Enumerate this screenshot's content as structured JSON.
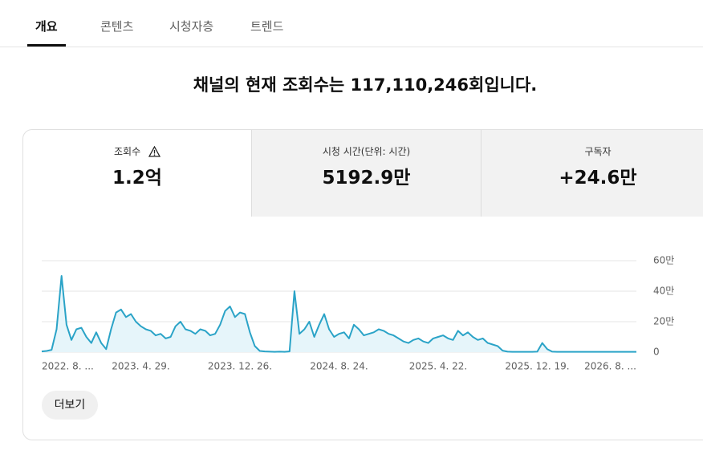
{
  "tabs": [
    "개요",
    "콘텐츠",
    "시청자층",
    "트렌드"
  ],
  "headline": "채널의 현재 조회수는 117,110,246회입니다.",
  "metrics": [
    {
      "label": "조회수",
      "value": "1.2억"
    },
    {
      "label": "시청 시간(단위: 시간)",
      "value": "5192.9만"
    },
    {
      "label": "구독자",
      "value": "+24.6만"
    }
  ],
  "more_button": "더보기",
  "chart_data": {
    "type": "line",
    "color": "#2aa3c7",
    "fill": "#e6f5fa",
    "categories": [
      "2022. 8. ...",
      null,
      null,
      null,
      null,
      null,
      null,
      null,
      null,
      null,
      null,
      null,
      null,
      null,
      null,
      null,
      null,
      null,
      null,
      null,
      "2023. 4. 29.",
      null,
      null,
      null,
      null,
      null,
      null,
      null,
      null,
      null,
      null,
      null,
      null,
      null,
      null,
      null,
      null,
      null,
      null,
      null,
      "2023. 12. 26.",
      null,
      null,
      null,
      null,
      null,
      null,
      null,
      null,
      null,
      null,
      null,
      null,
      null,
      null,
      null,
      null,
      null,
      null,
      null,
      "2024. 8. 24.",
      null,
      null,
      null,
      null,
      null,
      null,
      null,
      null,
      null,
      null,
      null,
      null,
      null,
      null,
      null,
      null,
      null,
      null,
      null,
      "2025. 4. 22.",
      null,
      null,
      null,
      null,
      null,
      null,
      null,
      null,
      null,
      null,
      null,
      null,
      null,
      null,
      null,
      null,
      null,
      null,
      null,
      "2025. 12. 19.",
      null,
      null,
      null,
      null,
      null,
      null,
      null,
      null,
      null,
      null,
      null,
      null,
      null,
      null,
      null,
      null,
      null,
      null,
      null,
      "2026. 8. ..."
    ],
    "values": [
      5000,
      8000,
      15000,
      150000,
      500000,
      180000,
      80000,
      150000,
      160000,
      100000,
      60000,
      130000,
      60000,
      20000,
      150000,
      260000,
      280000,
      230000,
      250000,
      200000,
      170000,
      150000,
      140000,
      110000,
      120000,
      90000,
      100000,
      170000,
      200000,
      150000,
      140000,
      120000,
      150000,
      140000,
      110000,
      120000,
      180000,
      270000,
      300000,
      230000,
      260000,
      250000,
      130000,
      40000,
      8000,
      5000,
      3000,
      2000,
      3000,
      2000,
      5000,
      400000,
      120000,
      150000,
      200000,
      100000,
      180000,
      250000,
      150000,
      100000,
      120000,
      130000,
      90000,
      180000,
      150000,
      110000,
      120000,
      130000,
      150000,
      140000,
      120000,
      110000,
      90000,
      70000,
      60000,
      80000,
      90000,
      70000,
      60000,
      90000,
      100000,
      110000,
      90000,
      80000,
      140000,
      110000,
      130000,
      100000,
      80000,
      90000,
      60000,
      50000,
      40000,
      10000,
      3000,
      2000,
      2000,
      2000,
      2000,
      2000,
      3000,
      60000,
      20000,
      3000,
      2000,
      2000,
      2000,
      2000,
      2000,
      2000,
      2000,
      2000,
      2000,
      2000,
      2000,
      2000,
      2000,
      2000,
      2000,
      2000,
      2000
    ],
    "ylim": [
      0,
      600000
    ],
    "yticks": [
      {
        "value": 0,
        "label": "0"
      },
      {
        "value": 200000,
        "label": "20만"
      },
      {
        "value": 400000,
        "label": "40만"
      },
      {
        "value": 600000,
        "label": "60만"
      }
    ],
    "grid": true
  }
}
